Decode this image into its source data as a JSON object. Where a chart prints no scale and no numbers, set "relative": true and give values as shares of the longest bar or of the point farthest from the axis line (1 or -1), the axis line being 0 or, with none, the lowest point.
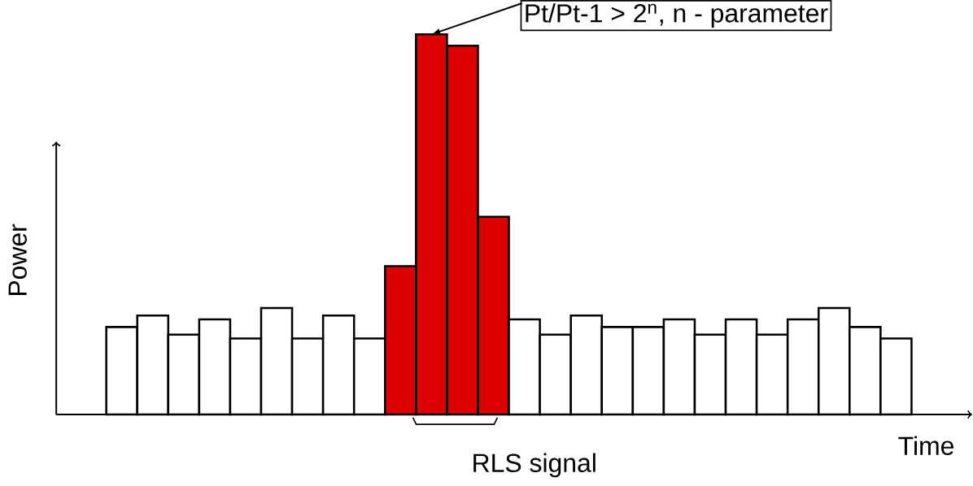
{
  "chart_data": {
    "type": "bar",
    "relative": true,
    "xlabel": "Time",
    "ylabel": "Power",
    "categories": [
      null,
      null,
      null,
      null,
      null,
      null,
      null,
      null,
      null,
      null,
      null,
      null,
      null,
      null,
      null,
      null,
      null,
      null,
      null,
      null,
      null,
      null,
      null,
      null,
      null,
      null
    ],
    "values": [
      0.23,
      0.26,
      0.21,
      0.25,
      0.2,
      0.28,
      0.2,
      0.26,
      0.2,
      0.39,
      1,
      0.97,
      0.52,
      0.25,
      0.21,
      0.26,
      0.23,
      0.23,
      0.25,
      0.21,
      0.25,
      0.21,
      0.25,
      0.28,
      0.23,
      0.2
    ],
    "colors": [
      "#ffffff",
      "#ffffff",
      "#ffffff",
      "#ffffff",
      "#ffffff",
      "#ffffff",
      "#ffffff",
      "#ffffff",
      "#ffffff",
      "#dd0000",
      "#dd0000",
      "#dd0000",
      "#dd0000",
      "#ffffff",
      "#ffffff",
      "#ffffff",
      "#ffffff",
      "#ffffff",
      "#ffffff",
      "#ffffff",
      "#ffffff",
      "#ffffff",
      "#ffffff",
      "#ffffff",
      "#ffffff",
      "#ffffff"
    ],
    "annotations": [
      "Pt/Pt-1 > 2$^{n}$, n - parameter",
      "RLS signal"
    ]
  }
}
